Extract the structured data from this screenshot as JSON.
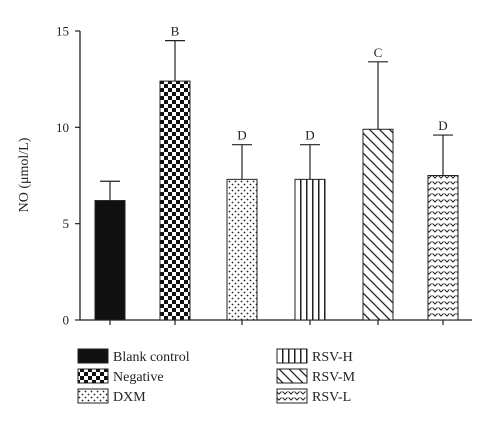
{
  "chart_data": {
    "type": "bar",
    "ylabel": "NO (μmol/L)",
    "ylim": [
      0,
      15
    ],
    "yticks": [
      0,
      5,
      10,
      15
    ],
    "grid": false,
    "legend_position": "bottom",
    "categories": [
      "Blank control",
      "Negative",
      "DXM",
      "RSV-H",
      "RSV-M",
      "RSV-L"
    ],
    "values": [
      6.2,
      12.4,
      7.3,
      7.3,
      9.9,
      7.5
    ],
    "errors": [
      1.0,
      2.1,
      1.8,
      1.8,
      3.5,
      2.1
    ],
    "significance": [
      "",
      "B",
      "D",
      "D",
      "C",
      "D"
    ],
    "patterns": [
      "solid",
      "checker",
      "dots",
      "vertical-lines",
      "diagonal-lines",
      "chevrons"
    ]
  }
}
